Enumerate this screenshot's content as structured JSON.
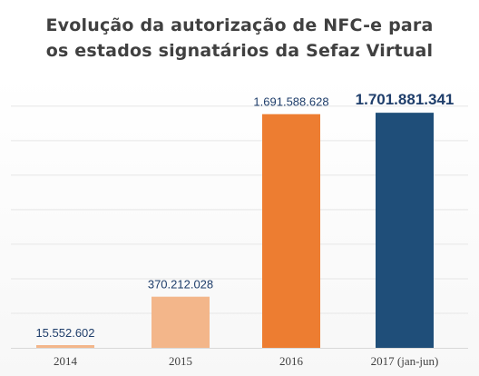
{
  "chart_data": {
    "type": "bar",
    "title_lines": [
      "Evolução da autorização de NFC-e para",
      "os estados signatários da Sefaz Virtual"
    ],
    "categories": [
      "2014",
      "2015",
      "2016",
      "2017 (jan-jun)"
    ],
    "values": [
      15552602,
      370212028,
      1691588628,
      1701881341
    ],
    "value_labels": [
      "15.552.602",
      "370.212.028",
      "1.691.588.628",
      "1.701.881.341"
    ],
    "bar_colors": [
      "#f3b68a",
      "#f3b68a",
      "#ed7d31",
      "#1f4e79"
    ],
    "gridlines": true,
    "ylim": [
      0,
      1900000000
    ]
  }
}
